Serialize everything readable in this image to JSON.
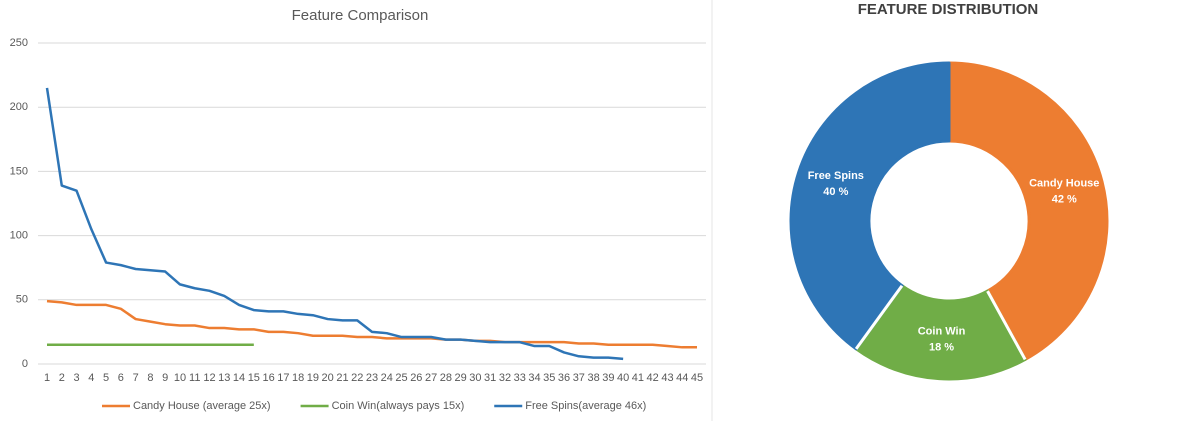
{
  "chart_data": [
    {
      "type": "line",
      "title": "Feature Comparison",
      "categories": [
        "1",
        "2",
        "3",
        "4",
        "5",
        "6",
        "7",
        "8",
        "9",
        "10",
        "11",
        "12",
        "13",
        "14",
        "15",
        "16",
        "17",
        "18",
        "19",
        "20",
        "21",
        "22",
        "23",
        "24",
        "25",
        "26",
        "27",
        "28",
        "29",
        "30",
        "31",
        "32",
        "33",
        "34",
        "35",
        "36",
        "37",
        "38",
        "39",
        "40",
        "41",
        "42",
        "43",
        "44",
        "45"
      ],
      "ylim": [
        0,
        250
      ],
      "yticks": [
        0,
        50,
        100,
        150,
        200,
        250
      ],
      "grid": true,
      "legend": "bottom",
      "series": [
        {
          "name": "Candy House (average 25x)",
          "color": "#ed7d31",
          "values": [
            49,
            48,
            46,
            46,
            46,
            43,
            35,
            33,
            31,
            30,
            30,
            28,
            28,
            27,
            27,
            25,
            25,
            24,
            22,
            22,
            22,
            21,
            21,
            20,
            20,
            20,
            20,
            19,
            19,
            18,
            18,
            17,
            17,
            17,
            17,
            17,
            16,
            16,
            15,
            15,
            15,
            15,
            14,
            13,
            13
          ]
        },
        {
          "name": "Coin Win(always pays 15x)",
          "color": "#70ad47",
          "values": [
            15,
            15,
            15,
            15,
            15,
            15,
            15,
            15,
            15,
            15,
            15,
            15,
            15,
            15,
            15,
            null,
            null,
            null,
            null,
            null,
            null,
            null,
            null,
            null,
            null,
            null,
            null,
            null,
            null,
            null,
            null,
            null,
            null,
            null,
            null,
            null,
            null,
            null,
            null,
            null,
            null,
            null,
            null,
            null,
            null
          ]
        },
        {
          "name": "Free Spins(average 46x)",
          "color": "#2e75b6",
          "values": [
            215,
            139,
            135,
            105,
            79,
            77,
            74,
            73,
            72,
            62,
            59,
            57,
            53,
            46,
            42,
            41,
            41,
            39,
            38,
            35,
            34,
            34,
            25,
            24,
            21,
            21,
            21,
            19,
            19,
            18,
            17,
            17,
            17,
            14,
            14,
            9,
            6,
            5,
            5,
            4,
            null,
            null,
            null,
            null,
            null
          ]
        }
      ]
    },
    {
      "type": "donut",
      "title": "FEATURE DISTRIBUTION",
      "categories": [
        "Candy House",
        "Coin Win",
        "Free Spins"
      ],
      "values": [
        42,
        18,
        40
      ],
      "value_labels": [
        "42 %",
        "18 %",
        "40 %"
      ],
      "colors": [
        "#ed7d31",
        "#70ad47",
        "#2e75b6"
      ]
    }
  ]
}
